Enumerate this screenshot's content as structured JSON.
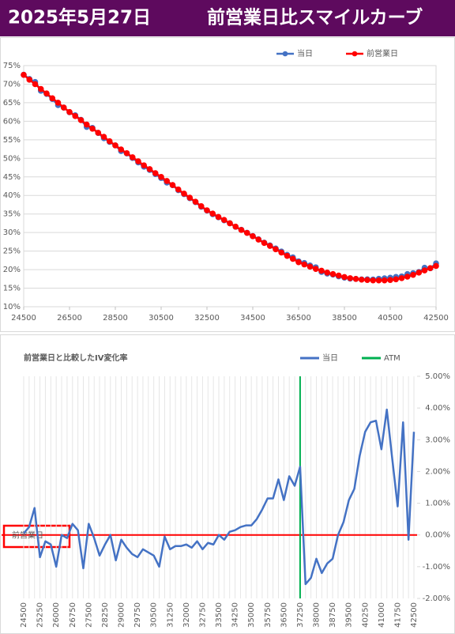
{
  "header": {
    "date": "2025年5月27日",
    "title": "前営業日比スマイルカーブ"
  },
  "chart_data": [
    {
      "type": "line",
      "legend": "top",
      "grid": true,
      "x": [
        24500,
        24750,
        25000,
        25250,
        25500,
        25750,
        26000,
        26250,
        26500,
        26750,
        27000,
        27250,
        27500,
        27750,
        28000,
        28250,
        28500,
        28750,
        29000,
        29250,
        29500,
        29750,
        30000,
        30250,
        30500,
        30750,
        31000,
        31250,
        31500,
        31750,
        32000,
        32250,
        32500,
        32750,
        33000,
        33250,
        33500,
        33750,
        34000,
        34250,
        34500,
        34750,
        35000,
        35250,
        35500,
        35750,
        36000,
        36250,
        36500,
        36750,
        37000,
        37250,
        37500,
        37750,
        38000,
        38250,
        38500,
        38750,
        39000,
        39250,
        39500,
        39750,
        40000,
        40250,
        40500,
        40750,
        41000,
        41250,
        41500,
        41750,
        42000,
        42250,
        42500
      ],
      "xlim": [
        24500,
        42500
      ],
      "xticks": [
        24500,
        26500,
        28500,
        30500,
        32500,
        34500,
        36500,
        38500,
        40500,
        42500
      ],
      "ylim": [
        10,
        75
      ],
      "yticks": [
        {
          "value": 10,
          "label": "10%"
        },
        {
          "value": 15,
          "label": "15%"
        },
        {
          "value": 20,
          "label": "20%"
        },
        {
          "value": 25,
          "label": "25%"
        },
        {
          "value": 30,
          "label": "30%"
        },
        {
          "value": 35,
          "label": "35%"
        },
        {
          "value": 40,
          "label": "40%"
        },
        {
          "value": 45,
          "label": "45%"
        },
        {
          "value": 50,
          "label": "50%"
        },
        {
          "value": 55,
          "label": "55%"
        },
        {
          "value": 60,
          "label": "60%"
        },
        {
          "value": 65,
          "label": "65%"
        },
        {
          "value": 70,
          "label": "70%"
        },
        {
          "value": 75,
          "label": "75%"
        }
      ],
      "series": [
        {
          "name": "当日",
          "color": "#4472c4",
          "values": [
            72.54,
            71.38,
            70.6,
            68.22,
            67.37,
            66.0,
            64.35,
            63.7,
            62.44,
            61.61,
            60.39,
            58.48,
            58.2,
            56.84,
            55.44,
            54.44,
            53.5,
            51.98,
            51.32,
            50.1,
            48.9,
            47.76,
            46.89,
            45.75,
            44.71,
            43.46,
            42.78,
            41.41,
            40.36,
            39.26,
            38.19,
            36.95,
            35.93,
            34.94,
            34.11,
            33.3,
            32.5,
            31.55,
            30.73,
            29.94,
            29.07,
            28.18,
            27.28,
            26.53,
            25.7,
            24.88,
            23.97,
            23.3,
            22.24,
            21.8,
            21.12,
            20.63,
            19.39,
            18.94,
            18.66,
            18.18,
            17.84,
            17.57,
            17.5,
            17.37,
            17.39,
            17.35,
            17.53,
            17.66,
            17.81,
            18.03,
            18.18,
            18.81,
            19.05,
            19.37,
            20.5,
            20.37,
            21.68
          ]
        },
        {
          "name": "前営業日",
          "color": "#ff0000",
          "values": [
            72.5,
            71.2,
            70.0,
            68.7,
            67.5,
            66.2,
            65.0,
            63.7,
            62.5,
            61.4,
            60.3,
            59.1,
            58.0,
            56.9,
            55.8,
            54.6,
            53.5,
            52.4,
            51.4,
            50.3,
            49.2,
            48.1,
            47.1,
            46.0,
            45.0,
            43.9,
            42.8,
            41.6,
            40.5,
            39.4,
            38.3,
            37.1,
            36.0,
            35.1,
            34.2,
            33.4,
            32.5,
            31.6,
            30.7,
            29.9,
            29.0,
            28.1,
            27.2,
            26.4,
            25.5,
            24.6,
            23.7,
            22.9,
            22.0,
            21.4,
            20.8,
            20.2,
            19.7,
            19.2,
            18.8,
            18.4,
            18.0,
            17.7,
            17.5,
            17.3,
            17.2,
            17.1,
            17.1,
            17.1,
            17.2,
            17.4,
            17.7,
            18.1,
            18.6,
            19.2,
            19.8,
            20.4,
            21.0
          ]
        }
      ]
    },
    {
      "type": "line",
      "title": "前営業日と比較したIV変化率",
      "legend": "top",
      "categories": [
        "24500",
        null,
        null,
        "25250",
        null,
        null,
        "26000",
        null,
        null,
        "26750",
        null,
        null,
        "27500",
        null,
        null,
        "28250",
        null,
        null,
        "29000",
        null,
        null,
        "29750",
        null,
        null,
        "30500",
        null,
        null,
        "31250",
        null,
        null,
        "32000",
        null,
        null,
        "32750",
        null,
        null,
        "33500",
        null,
        null,
        "34250",
        null,
        null,
        "35000",
        null,
        null,
        "35750",
        null,
        null,
        "36500",
        null,
        null,
        "37250",
        null,
        null,
        "38000",
        null,
        null,
        "38750",
        null,
        null,
        "39500",
        null,
        null,
        "40250",
        null,
        null,
        "41000",
        null,
        null,
        "41750",
        null,
        null,
        "42500"
      ],
      "ylim": [
        -2,
        5
      ],
      "yticks": [
        {
          "value": 5,
          "label": "5.00%"
        },
        {
          "value": 4,
          "label": "4.00%"
        },
        {
          "value": 3,
          "label": "3.00%"
        },
        {
          "value": 2,
          "label": "2.00%"
        },
        {
          "value": 1,
          "label": "1.00%"
        },
        {
          "value": 0,
          "label": "0.00%"
        },
        {
          "value": -1,
          "label": "-1.00%"
        },
        {
          "value": -2,
          "label": "-2.00%"
        }
      ],
      "series": [
        {
          "name": "当日",
          "color": "#4472c4",
          "values": [
            0.05,
            0.25,
            0.85,
            -0.7,
            -0.2,
            -0.3,
            -1.0,
            0.0,
            -0.1,
            0.35,
            0.15,
            -1.05,
            0.35,
            -0.1,
            -0.65,
            -0.3,
            0.0,
            -0.8,
            -0.15,
            -0.4,
            -0.6,
            -0.7,
            -0.45,
            -0.55,
            -0.65,
            -1.0,
            -0.05,
            -0.45,
            -0.35,
            -0.35,
            -0.3,
            -0.4,
            -0.2,
            -0.45,
            -0.25,
            -0.3,
            0.0,
            -0.15,
            0.1,
            0.15,
            0.25,
            0.3,
            0.3,
            0.5,
            0.8,
            1.15,
            1.15,
            1.75,
            1.1,
            1.85,
            1.55,
            2.15,
            -1.55,
            -1.35,
            -0.75,
            -1.2,
            -0.9,
            -0.75,
            0.0,
            0.4,
            1.1,
            1.45,
            2.5,
            3.25,
            3.55,
            3.6,
            2.7,
            3.95,
            2.4,
            0.9,
            3.55,
            -0.15,
            3.25
          ]
        }
      ],
      "vlines": [
        {
          "name": "ATM",
          "color": "#00b050",
          "x": "37250"
        }
      ],
      "hlines": [
        {
          "label": "前営業日",
          "color": "#ff0000",
          "value": 0
        }
      ]
    }
  ]
}
